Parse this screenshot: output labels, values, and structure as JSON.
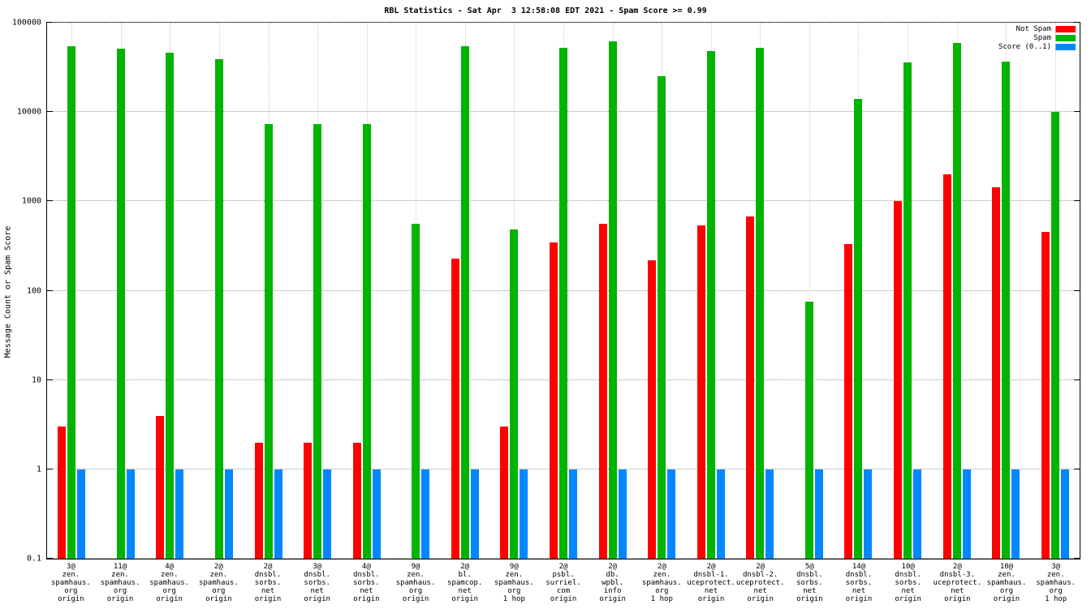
{
  "chart_data": {
    "type": "bar",
    "title": "RBL Statistics - Sat Apr  3 12:58:08 EDT 2021 - Spam Score >= 0.99",
    "ylabel": "Message Count or Spam Score",
    "yscale": "log",
    "ylim": [
      0.1,
      100000
    ],
    "grid": true,
    "legend_position": "top-right",
    "yticks": [
      0.1,
      1,
      10,
      100,
      1000,
      10000,
      100000
    ],
    "ytick_labels": [
      "0.1",
      "1",
      "10",
      "100",
      "1000",
      "10000",
      "100000"
    ],
    "legend": [
      {
        "label": "Not Spam",
        "color": "#ff0000"
      },
      {
        "label": "Spam",
        "color": "#00b400"
      },
      {
        "label": "Score (0..1)",
        "color": "#0088ff"
      }
    ],
    "categories": [
      [
        "3@",
        "zen.",
        "spamhaus.",
        "org",
        "origin"
      ],
      [
        "11@",
        "zen.",
        "spamhaus.",
        "org",
        "origin"
      ],
      [
        "4@",
        "zen.",
        "spamhaus.",
        "org",
        "origin"
      ],
      [
        "2@",
        "zen.",
        "spamhaus.",
        "org",
        "origin"
      ],
      [
        "2@",
        "dnsbl.",
        "sorbs.",
        "net",
        "origin"
      ],
      [
        "3@",
        "dnsbl.",
        "sorbs.",
        "net",
        "origin"
      ],
      [
        "4@",
        "dnsbl.",
        "sorbs.",
        "net",
        "origin"
      ],
      [
        "9@",
        "zen.",
        "spamhaus.",
        "org",
        "origin"
      ],
      [
        "2@",
        "bl.",
        "spamcop.",
        "net",
        "origin"
      ],
      [
        "9@",
        "zen.",
        "spamhaus.",
        "org",
        "1 hop"
      ],
      [
        "2@",
        "psbl.",
        "surriel.",
        "com",
        "origin"
      ],
      [
        "2@",
        "db.",
        "wpbl.",
        "info",
        "origin"
      ],
      [
        "2@",
        "zen.",
        "spamhaus.",
        "org",
        "1 hop"
      ],
      [
        "2@",
        "dnsbl-1.",
        "uceprotect.",
        "net",
        "origin"
      ],
      [
        "2@",
        "dnsbl-2.",
        "uceprotect.",
        "net",
        "origin"
      ],
      [
        "5@",
        "dnsbl.",
        "sorbs.",
        "net",
        "origin"
      ],
      [
        "14@",
        "dnsbl.",
        "sorbs.",
        "net",
        "origin"
      ],
      [
        "10@",
        "dnsbl.",
        "sorbs.",
        "net",
        "origin"
      ],
      [
        "2@",
        "dnsbl-3.",
        "uceprotect.",
        "net",
        "origin"
      ],
      [
        "10@",
        "zen.",
        "spamhaus.",
        "org",
        "origin"
      ],
      [
        "3@",
        "zen.",
        "spamhaus.",
        "org",
        "1 hop"
      ]
    ],
    "series": [
      {
        "name": "Not Spam",
        "color": "#ff0000",
        "values": [
          3,
          null,
          4,
          null,
          2,
          2,
          2,
          null,
          230,
          3,
          350,
          560,
          220,
          540,
          680,
          null,
          330,
          1000,
          2000,
          1450,
          460
        ]
      },
      {
        "name": "Spam",
        "color": "#00b400",
        "values": [
          55000,
          51000,
          46000,
          39000,
          7300,
          7300,
          7300,
          560,
          55000,
          480,
          52000,
          62000,
          25000,
          48000,
          52000,
          75,
          14000,
          36000,
          59000,
          37000,
          10000
        ]
      },
      {
        "name": "Score (0..1)",
        "color": "#0088ff",
        "values": [
          1,
          1,
          1,
          1,
          1,
          1,
          1,
          1,
          1,
          1,
          1,
          1,
          1,
          1,
          1,
          1,
          1,
          1,
          1,
          1,
          1
        ]
      }
    ]
  }
}
